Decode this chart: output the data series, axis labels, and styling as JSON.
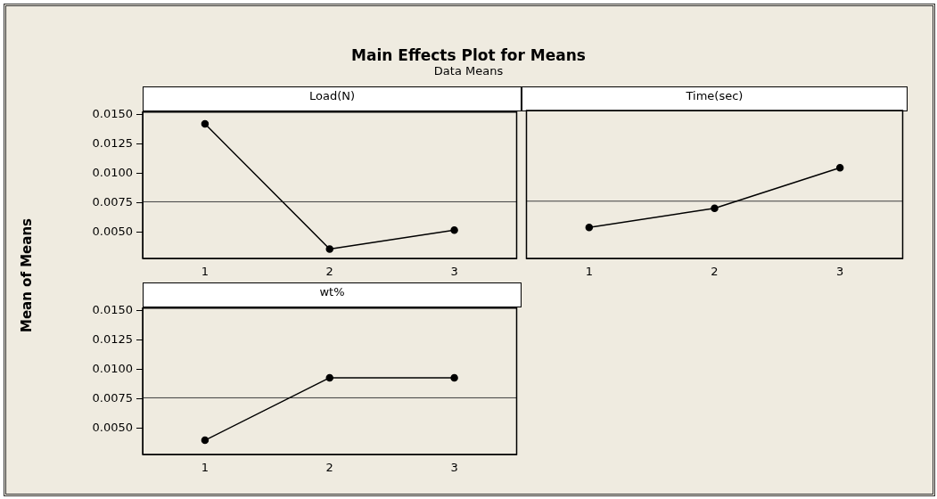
{
  "chart_data": [
    {
      "type": "other",
      "title": "Main Effects Plot for Means",
      "subtitle": "Data Means"
    },
    {
      "type": "line",
      "title": "Load(N)",
      "ylabel": "Mean of Means",
      "categories": [
        "1",
        "2",
        "3"
      ],
      "values": [
        0.0142,
        0.0036,
        0.0052
      ],
      "color": "#000000",
      "marker": "circle",
      "line_style": "solid",
      "ylim": [
        0.0028,
        0.0152
      ],
      "yticks": [
        {
          "value": 0.005,
          "label": "0.0050"
        },
        {
          "value": 0.0075,
          "label": "0.0075"
        },
        {
          "value": 0.01,
          "label": "0.0100"
        },
        {
          "value": 0.0125,
          "label": "0.0125"
        },
        {
          "value": 0.015,
          "label": "0.0150"
        }
      ],
      "ref_lines": [
        {
          "axis": "y",
          "value": 0.0076,
          "color": "#404040"
        }
      ]
    },
    {
      "type": "line",
      "title": "Time(sec)",
      "categories": [
        "1",
        "2",
        "3"
      ],
      "values": [
        0.0054,
        0.007,
        0.0104
      ],
      "color": "#000000",
      "marker": "circle",
      "line_style": "solid",
      "ylim": [
        0.0028,
        0.0152
      ],
      "tick_labels": "x",
      "ref_lines": [
        {
          "axis": "y",
          "value": 0.0076,
          "color": "#404040"
        }
      ]
    },
    {
      "type": "line",
      "title": "wt%",
      "categories": [
        "1",
        "2",
        "3"
      ],
      "values": [
        0.004,
        0.0093,
        0.0093
      ],
      "color": "#000000",
      "marker": "circle",
      "line_style": "solid",
      "ylim": [
        0.0028,
        0.0152
      ],
      "yticks": [
        {
          "value": 0.005,
          "label": "0.0050"
        },
        {
          "value": 0.0075,
          "label": "0.0075"
        },
        {
          "value": 0.01,
          "label": "0.0100"
        },
        {
          "value": 0.0125,
          "label": "0.0125"
        },
        {
          "value": 0.015,
          "label": "0.0150"
        }
      ],
      "ref_lines": [
        {
          "axis": "y",
          "value": 0.0076,
          "color": "#404040"
        }
      ]
    }
  ]
}
